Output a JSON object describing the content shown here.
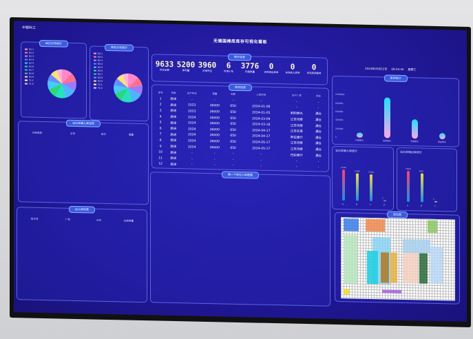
{
  "app_title": "中银科工",
  "main_title": "无锡国棉库库存可视化看板",
  "header": {
    "date": "2024年05月22日",
    "time": "09:24:34",
    "weekday": "星期三"
  },
  "pie_panels": [
    {
      "title": "库位分布统计",
      "legend": [
        "R1-1",
        "R1-2",
        "R1-3",
        "R1-4",
        "R1-5",
        "R1-6",
        "R1-7",
        "R1-8",
        "R1-9",
        "T1-1",
        "T1-2"
      ]
    },
    {
      "title": "库存分布统计",
      "legend": [
        "R2-1",
        "R2-2",
        "R2-3",
        "R2-4",
        "R2-5",
        "R2-6",
        "R2-7",
        "R2-8",
        "R2-9",
        "T2-1",
        "T2-2"
      ]
    }
  ],
  "stats_title": "统计信息",
  "stats": [
    {
      "value": "9633",
      "label": "货位总数"
    },
    {
      "value": "5200",
      "label": "库存量"
    },
    {
      "value": "3960",
      "label": "可用货位"
    },
    {
      "value": "6",
      "label": "可用小车"
    },
    {
      "value": "3776",
      "label": "托盘数量"
    },
    {
      "value": "0",
      "label": "未完成出库单"
    },
    {
      "value": "0",
      "label": "未完成入库单"
    },
    {
      "value": "0",
      "label": "未完成调拨单"
    }
  ],
  "table": {
    "title": "库存信息",
    "headers": [
      "序号",
      "货架",
      "生产年份",
      "重量",
      "包数",
      "入库时间",
      "生产厂家",
      "状态"
    ],
    "rows": [
      [
        "1",
        "原床",
        "-",
        "-",
        "-",
        "-",
        "-",
        "-"
      ],
      [
        "2",
        "原床",
        "2023",
        "26000",
        "650",
        "2024-01-08",
        "-",
        "-"
      ],
      [
        "3",
        "原床",
        "2023",
        "26000",
        "650",
        "2024-01-05",
        "射阳棉丸",
        "满仓"
      ],
      [
        "4",
        "原床",
        "2024",
        "26000",
        "650",
        "2024-03-09",
        "江苏鸿泰",
        "满仓"
      ],
      [
        "5",
        "原床",
        "2024",
        "26000",
        "650",
        "2024-03-18",
        "江苏鸿泰",
        "满仓"
      ],
      [
        "6",
        "原床",
        "2024",
        "26000",
        "650",
        "2024-04-17",
        "江苏农垦",
        "满仓"
      ],
      [
        "7",
        "原床",
        "2024",
        "26000",
        "650",
        "2024-04-17",
        "阿拉善什",
        "满仓"
      ],
      [
        "8",
        "原床",
        "2024",
        "26000",
        "650",
        "2024-05-17",
        "江苏鸿泰",
        "满仓"
      ],
      [
        "9",
        "原床",
        "2024",
        "26000",
        "650",
        "2024-05-17",
        "江苏鸿泰",
        "满仓"
      ],
      [
        "10",
        "原床",
        "-",
        "-",
        "-",
        "-",
        "巴彩棉什",
        "满仓"
      ],
      [
        "11",
        "原床",
        "-",
        "-",
        "-",
        "-",
        "-",
        "-"
      ],
      [
        "12",
        "原床",
        "-",
        "-",
        "-",
        "-",
        "-",
        "-"
      ]
    ]
  },
  "left_mid": {
    "title": "当日车辆入库任务",
    "headers": [
      "任务类型",
      "仓号",
      "批次",
      "重量"
    ]
  },
  "left_bottom": {
    "title": "出入库列表",
    "headers": [
      "批次号",
      "厂家",
      "仓号",
      "出库数量"
    ]
  },
  "center_bottom": {
    "title": "第一个库位入库数据"
  },
  "bar_chart": {
    "title": "库存统计",
    "yticks": [
      "0",
      "200000",
      "400000",
      "600000",
      "800000",
      "1000000"
    ],
    "categories": [
      "已用库位",
      "空闲库位",
      "可用库位",
      "锁定库位"
    ],
    "values": [
      120000,
      950000,
      450000,
      150000
    ],
    "ymax": 1100000
  },
  "gradient_panels": [
    {
      "title": "当日车辆入库统计",
      "labels": [
        "1556",
        "1383",
        "1334",
        "1"
      ],
      "values": [
        1556,
        1383,
        1334,
        1
      ],
      "categories": [
        "A",
        "B",
        "C",
        "D"
      ]
    },
    {
      "title": "当日车辆出库统计",
      "labels": [
        "1024",
        "954",
        "1"
      ],
      "values": [
        1024,
        954,
        1
      ],
      "categories": [
        "A",
        "B",
        "C"
      ]
    }
  ],
  "floor_map": {
    "title": "库位图"
  },
  "colors": {
    "background": "#1e1690",
    "panel_border": "#5d63e8",
    "accent": "#3b5ce0"
  }
}
